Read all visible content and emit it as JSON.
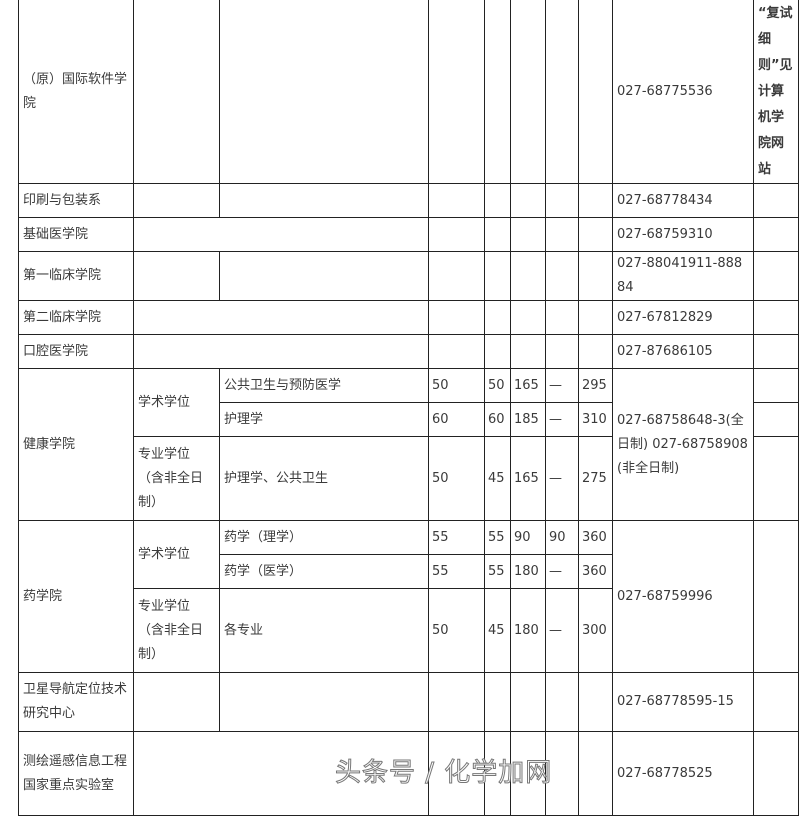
{
  "rows": [
    {
      "unit": "（原）国际软件学院",
      "phone": "027-68775536",
      "note": "“复试细则”见计算机学院网站"
    },
    {
      "unit": "印刷与包装系",
      "phone": "027-68778434"
    },
    {
      "unit": "基础医学院",
      "phone": "027-68759310"
    },
    {
      "unit": "第一临床学院",
      "phone": "027-88041911-88884"
    },
    {
      "unit": "第二临床学院",
      "phone": "027-67812829"
    },
    {
      "unit": "口腔医学院",
      "phone": "027-87686105"
    }
  ],
  "health": {
    "unit": "健康学院",
    "phone": "027-68758648-3(全日制) 027-68758908(非全日制)",
    "academic": "学术学位",
    "professional": "专业学位（含非全日制）",
    "items": [
      {
        "major": "公共卫生与预防医学",
        "s1": "50",
        "s2": "50",
        "s3": "165",
        "s4": "—",
        "total": "295"
      },
      {
        "major": "护理学",
        "s1": "60",
        "s2": "60",
        "s3": "185",
        "s4": "—",
        "total": "310"
      },
      {
        "major": "护理学、公共卫生",
        "s1": "50",
        "s2": "45",
        "s3": "165",
        "s4": "—",
        "total": "275"
      }
    ]
  },
  "pharmacy": {
    "unit": "药学院",
    "phone": "027-68759996",
    "academic": "学术学位",
    "professional": "专业学位（含非全日制）",
    "items": [
      {
        "major": "药学（理学）",
        "s1": "55",
        "s2": "55",
        "s3": "90",
        "s4": "90",
        "total": "360"
      },
      {
        "major": "药学（医学）",
        "s1": "55",
        "s2": "55",
        "s3": "180",
        "s4": "—",
        "total": "360"
      },
      {
        "major": "各专业",
        "s1": "50",
        "s2": "45",
        "s3": "180",
        "s4": "—",
        "total": "300"
      }
    ]
  },
  "tail": [
    {
      "unit": "卫星导航定位技术研究中心",
      "phone": "027-68778595-15"
    },
    {
      "unit": "测绘遥感信息工程国家重点实验室",
      "phone": "027-68778525"
    }
  ],
  "watermark": "头条号 / 化学加网"
}
